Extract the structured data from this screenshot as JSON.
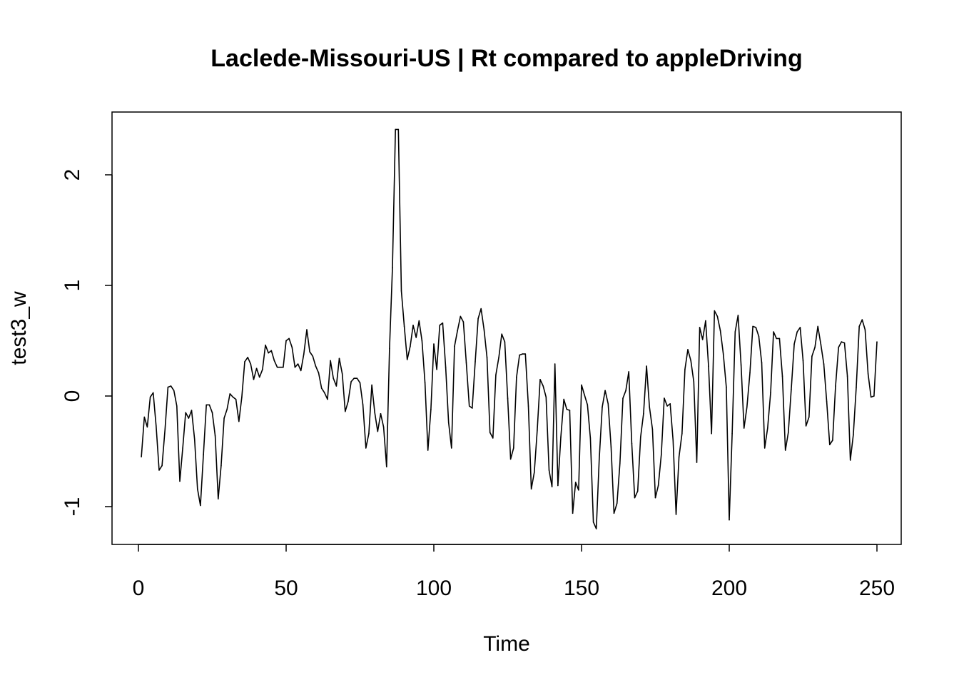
{
  "chart_data": {
    "type": "line",
    "title": "Laclede-Missouri-US | Rt compared to appleDriving",
    "xlabel": "Time",
    "ylabel": "test3_w",
    "xlim": [
      0,
      250
    ],
    "ylim": [
      -1.2,
      2.4
    ],
    "x_ticks": [
      0,
      50,
      100,
      150,
      200,
      250
    ],
    "y_ticks": [
      -1,
      0,
      1,
      2
    ],
    "x_tick_labels": [
      "0",
      "50",
      "100",
      "150",
      "200",
      "250"
    ],
    "y_tick_labels": [
      "-1",
      "0",
      "1",
      "2"
    ],
    "series": [
      {
        "x_start": 1,
        "x_step": 1,
        "values": [
          -0.55,
          -0.19,
          -0.28,
          -0.01,
          0.03,
          -0.27,
          -0.67,
          -0.63,
          -0.3,
          0.08,
          0.09,
          0.05,
          -0.09,
          -0.77,
          -0.47,
          -0.15,
          -0.2,
          -0.13,
          -0.39,
          -0.84,
          -0.99,
          -0.53,
          -0.08,
          -0.08,
          -0.15,
          -0.36,
          -0.93,
          -0.63,
          -0.2,
          -0.12,
          0.02,
          -0.01,
          -0.03,
          -0.23,
          -0.01,
          0.31,
          0.35,
          0.29,
          0.15,
          0.25,
          0.17,
          0.24,
          0.46,
          0.39,
          0.41,
          0.32,
          0.26,
          0.26,
          0.26,
          0.5,
          0.52,
          0.44,
          0.26,
          0.29,
          0.23,
          0.38,
          0.6,
          0.4,
          0.36,
          0.27,
          0.21,
          0.07,
          0.03,
          -0.03,
          0.32,
          0.16,
          0.09,
          0.34,
          0.2,
          -0.14,
          -0.05,
          0.13,
          0.16,
          0.16,
          0.12,
          -0.08,
          -0.47,
          -0.34,
          0.1,
          -0.15,
          -0.32,
          -0.16,
          -0.28,
          -0.64,
          0.43,
          1.16,
          2.41,
          2.41,
          0.95,
          0.63,
          0.33,
          0.45,
          0.64,
          0.53,
          0.68,
          0.5,
          0.12,
          -0.49,
          -0.12,
          0.47,
          0.24,
          0.64,
          0.66,
          0.26,
          -0.24,
          -0.47,
          0.45,
          0.59,
          0.72,
          0.67,
          0.3,
          -0.09,
          -0.11,
          0.31,
          0.7,
          0.79,
          0.6,
          0.35,
          -0.33,
          -0.38,
          0.19,
          0.35,
          0.56,
          0.49,
          -0.02,
          -0.57,
          -0.47,
          0.17,
          0.37,
          0.38,
          0.38,
          -0.09,
          -0.84,
          -0.69,
          -0.31,
          0.15,
          0.09,
          -0.01,
          -0.67,
          -0.82,
          0.29,
          -0.81,
          -0.37,
          -0.03,
          -0.12,
          -0.13,
          -1.06,
          -0.78,
          -0.85,
          0.1,
          0.01,
          -0.08,
          -0.38,
          -1.14,
          -1.2,
          -0.57,
          -0.1,
          0.05,
          -0.07,
          -0.46,
          -1.06,
          -0.97,
          -0.61,
          -0.02,
          0.05,
          0.22,
          -0.43,
          -0.92,
          -0.86,
          -0.37,
          -0.16,
          0.27,
          -0.1,
          -0.3,
          -0.92,
          -0.81,
          -0.53,
          -0.02,
          -0.09,
          -0.07,
          -0.4,
          -1.07,
          -0.55,
          -0.34,
          0.24,
          0.42,
          0.32,
          0.13,
          -0.6,
          0.62,
          0.51,
          0.68,
          0.27,
          -0.34,
          0.77,
          0.72,
          0.59,
          0.38,
          0.08,
          -1.12,
          -0.34,
          0.58,
          0.73,
          0.28,
          -0.29,
          -0.1,
          0.21,
          0.63,
          0.62,
          0.54,
          0.3,
          -0.47,
          -0.29,
          0.03,
          0.58,
          0.52,
          0.52,
          0.18,
          -0.49,
          -0.33,
          0.06,
          0.47,
          0.58,
          0.62,
          0.32,
          -0.27,
          -0.19,
          0.36,
          0.44,
          0.63,
          0.47,
          0.29,
          -0.05,
          -0.44,
          -0.4,
          0.09,
          0.44,
          0.49,
          0.48,
          0.18,
          -0.58,
          -0.35,
          0.08,
          0.63,
          0.69,
          0.6,
          0.2,
          -0.01,
          0.0,
          0.49
        ]
      }
    ]
  }
}
